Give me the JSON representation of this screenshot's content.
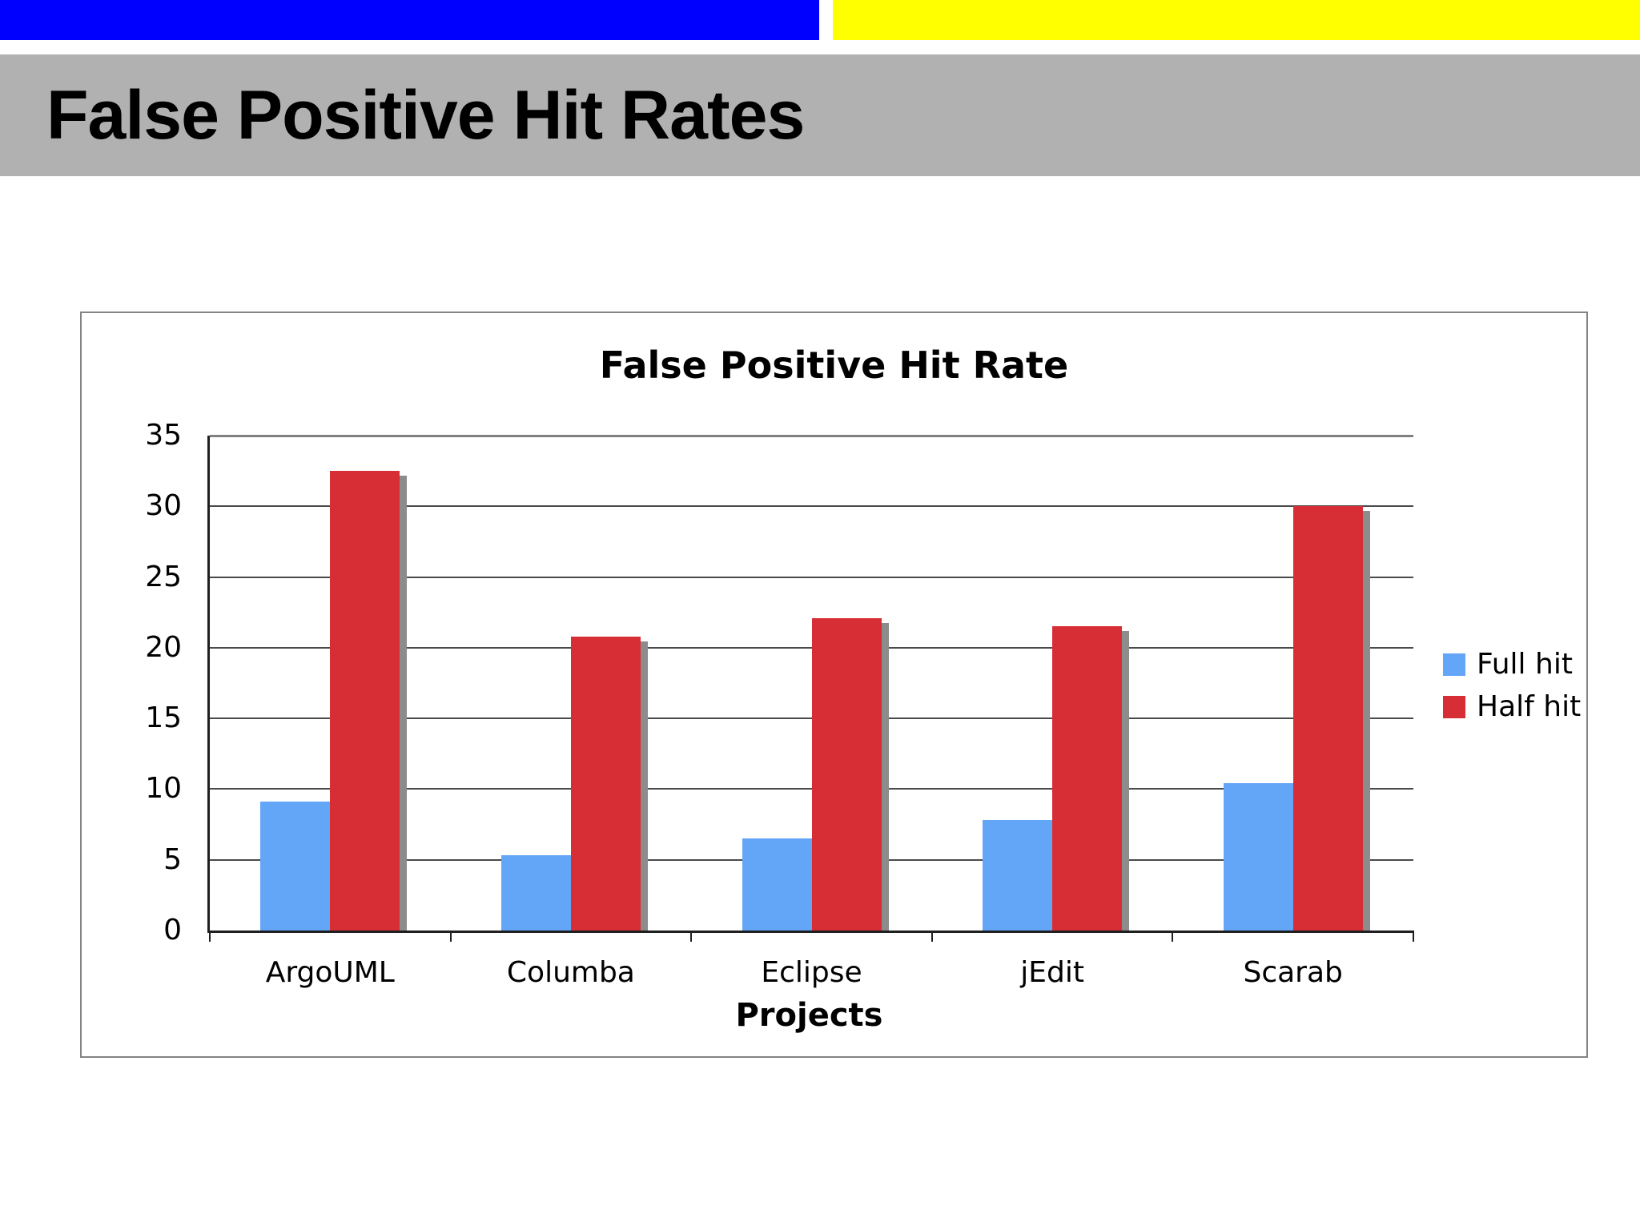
{
  "slide": {
    "title": "False Positive Hit Rates",
    "banner_blue_color": "#0000ff",
    "banner_yellow_color": "#ffff00",
    "title_bar_color": "#b1b1b1"
  },
  "chart_data": {
    "type": "bar",
    "title": "False Positive Hit Rate",
    "categories": [
      "ArgoUML",
      "Columba",
      "Eclipse",
      "jEdit",
      "Scarab"
    ],
    "series": [
      {
        "name": "Full hit",
        "color": "#63a5f7",
        "values": [
          9.1,
          5.3,
          6.5,
          7.8,
          10.4
        ]
      },
      {
        "name": "Half hit",
        "color": "#d72e36",
        "values": [
          32.5,
          20.8,
          22.1,
          21.5,
          30.0
        ]
      }
    ],
    "xlabel": "Projects",
    "ylabel": "",
    "ylim": [
      0,
      35
    ],
    "yticks": [
      0,
      5,
      10,
      15,
      20,
      25,
      30,
      35
    ],
    "grid": true,
    "legend_position": "right",
    "bar_shadow_color": "#8c8c8c",
    "axis_color": "#1f1f1f"
  }
}
